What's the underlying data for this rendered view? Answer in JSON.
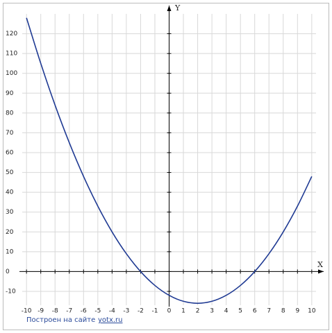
{
  "chart_data": {
    "type": "line",
    "x_label": "X",
    "y_label": "Y",
    "x": [
      -10,
      -9,
      -8,
      -7,
      -6,
      -5,
      -4,
      -3,
      -2,
      -1,
      0,
      1,
      2,
      3,
      4,
      5,
      6,
      7,
      8,
      9,
      10
    ],
    "series": [
      {
        "color": "#1f3a93",
        "values": [
          128,
          105,
          84,
          65,
          48,
          33,
          20,
          9,
          0,
          -7,
          -12,
          -15,
          -16,
          -15,
          -12,
          -7,
          0,
          9,
          20,
          33,
          48
        ]
      }
    ],
    "xlim": [
      -10.3,
      10.3
    ],
    "ylim": [
      -17,
      130
    ],
    "xticks": [
      -10,
      -9,
      -8,
      -7,
      -6,
      -5,
      -4,
      -3,
      -2,
      -1,
      0,
      1,
      2,
      3,
      4,
      5,
      6,
      7,
      8,
      9,
      10
    ],
    "yticks": [
      -10,
      0,
      10,
      20,
      30,
      40,
      50,
      60,
      70,
      80,
      90,
      100,
      110,
      120
    ],
    "grid": true
  },
  "footer": {
    "text": "Построен на сайте",
    "link": "yotx.ru"
  }
}
